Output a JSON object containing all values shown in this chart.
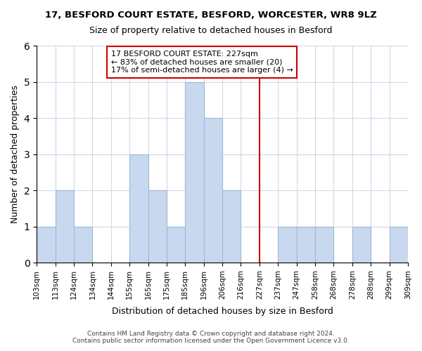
{
  "title": "17, BESFORD COURT ESTATE, BESFORD, WORCESTER, WR8 9LZ",
  "subtitle": "Size of property relative to detached houses in Besford",
  "xlabel": "Distribution of detached houses by size in Besford",
  "ylabel": "Number of detached properties",
  "bin_edges": [
    "103sqm",
    "113sqm",
    "124sqm",
    "134sqm",
    "144sqm",
    "155sqm",
    "165sqm",
    "175sqm",
    "185sqm",
    "196sqm",
    "206sqm",
    "216sqm",
    "227sqm",
    "237sqm",
    "247sqm",
    "258sqm",
    "268sqm",
    "278sqm",
    "288sqm",
    "299sqm",
    "309sqm"
  ],
  "bar_heights": [
    1,
    2,
    1,
    0,
    0,
    3,
    2,
    1,
    5,
    4,
    2,
    0,
    0,
    1,
    1,
    1,
    0,
    1,
    0,
    1
  ],
  "bar_color": "#c8d8ee",
  "bar_edge_color": "#a0b8d8",
  "vline_label": "227sqm",
  "vline_color": "#cc0000",
  "ylim": [
    0,
    6
  ],
  "yticks": [
    0,
    1,
    2,
    3,
    4,
    5,
    6
  ],
  "annotation_title": "17 BESFORD COURT ESTATE: 227sqm",
  "annotation_line1": "← 83% of detached houses are smaller (20)",
  "annotation_line2": "17% of semi-detached houses are larger (4) →",
  "annotation_box_color": "#ffffff",
  "annotation_box_edge": "#cc0000",
  "footer1": "Contains HM Land Registry data © Crown copyright and database right 2024.",
  "footer2": "Contains public sector information licensed under the Open Government Licence v3.0.",
  "background_color": "#ffffff",
  "grid_color": "#d0d8e8"
}
